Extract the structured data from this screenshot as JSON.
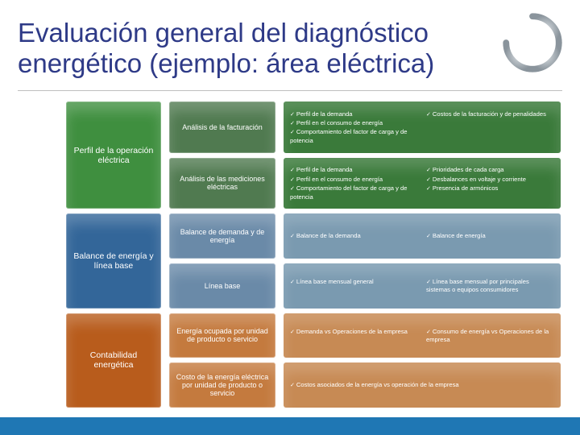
{
  "title": "Evaluación general del diagnóstico energético (ejemplo: área eléctrica)",
  "title_color": "#2e3a87",
  "colors": {
    "cat1_bg": "#3f8f3f",
    "cat1_sub_bg": "#507a50",
    "cat1_detail_bg": "#3a7a3a",
    "cat2_bg": "#336699",
    "cat2_sub_bg": "#6a8aa8",
    "cat2_detail_bg": "#7a9ab0",
    "cat3_bg": "#b85c1c",
    "cat3_sub_bg": "#c47a3e",
    "cat3_detail_bg": "#c78a54"
  },
  "categories": [
    {
      "label": "Perfil de la operación eléctrica",
      "subs": [
        {
          "label": "Análisis de la facturación",
          "left": [
            "Perfil de la demanda",
            "Perfil en el consumo de energía",
            "Comportamiento del factor de carga y de potencia"
          ],
          "right": [
            "Costos de la facturación y de penalidades"
          ]
        },
        {
          "label": "Análisis de las mediciones eléctricas",
          "left": [
            "Perfil de la demanda",
            "Perfil en el consumo de energía",
            "Comportamiento del factor de carga y de potencia"
          ],
          "right": [
            "Prioridades de cada carga",
            "Desbalances en voltaje y corriente",
            "Presencia de armónicos"
          ]
        }
      ]
    },
    {
      "label": "Balance de energía y línea base",
      "subs": [
        {
          "label": "Balance de demanda y de energía",
          "left": [
            "Balance de la demanda"
          ],
          "right": [
            "Balance de energía"
          ]
        },
        {
          "label": "Línea base",
          "left": [
            "Línea base mensual general"
          ],
          "right": [
            "Línea base mensual por principales sistemas o equipos consumidores"
          ]
        }
      ]
    },
    {
      "label": "Contabilidad energética",
      "subs": [
        {
          "label": "Energía ocupada por unidad de producto o servicio",
          "left": [
            "Demanda vs Operaciones de la empresa"
          ],
          "right": [
            "Consumo de energía vs Operaciones de la empresa"
          ]
        },
        {
          "label": "Costo de la energía eléctrica por unidad de producto o servicio",
          "left": [
            "Costos asociados de la energía vs operación de la empresa"
          ],
          "right": []
        }
      ]
    }
  ]
}
